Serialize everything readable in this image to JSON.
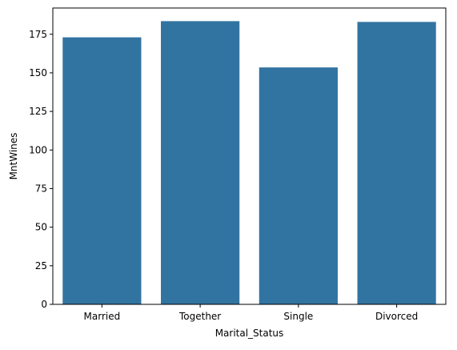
{
  "chart_data": {
    "type": "bar",
    "categories": [
      "Married",
      "Together",
      "Single",
      "Divorced"
    ],
    "values": [
      173,
      183.5,
      153.5,
      183
    ],
    "title": "",
    "xlabel": "Marital_Status",
    "ylabel": "MntWines",
    "ylim": [
      0,
      192
    ],
    "yticks": [
      0,
      25,
      50,
      75,
      100,
      125,
      150,
      175
    ],
    "grid": false,
    "legend": "none",
    "bar_color": "#3274a1"
  }
}
